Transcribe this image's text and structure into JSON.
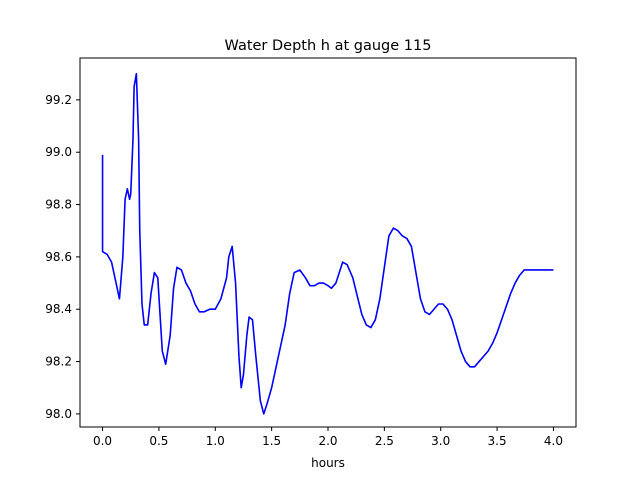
{
  "chart_data": {
    "type": "line",
    "title": "Water Depth h at gauge 115",
    "xlabel": "hours",
    "ylabel": "",
    "xlim": [
      -0.2,
      4.2
    ],
    "ylim": [
      97.95,
      99.36
    ],
    "xticks": [
      0.0,
      0.5,
      1.0,
      1.5,
      2.0,
      2.5,
      3.0,
      3.5,
      4.0
    ],
    "yticks": [
      98.0,
      98.2,
      98.4,
      98.6,
      98.8,
      99.0,
      99.2
    ],
    "xtick_labels": [
      "0.0",
      "0.5",
      "1.0",
      "1.5",
      "2.0",
      "2.5",
      "3.0",
      "3.5",
      "4.0"
    ],
    "ytick_labels": [
      "98.0",
      "98.2",
      "98.4",
      "98.6",
      "98.8",
      "99.0",
      "99.2"
    ],
    "grid": false,
    "series": [
      {
        "color": "#0000ff",
        "x": [
          0.0,
          0.0,
          0.0,
          0.04,
          0.08,
          0.12,
          0.15,
          0.18,
          0.2,
          0.22,
          0.24,
          0.25,
          0.27,
          0.28,
          0.3,
          0.32,
          0.33,
          0.35,
          0.37,
          0.4,
          0.43,
          0.46,
          0.49,
          0.51,
          0.53,
          0.56,
          0.6,
          0.63,
          0.66,
          0.7,
          0.74,
          0.78,
          0.82,
          0.86,
          0.9,
          0.95,
          1.0,
          1.05,
          1.1,
          1.12,
          1.15,
          1.18,
          1.21,
          1.23,
          1.25,
          1.28,
          1.3,
          1.33,
          1.36,
          1.4,
          1.43,
          1.46,
          1.5,
          1.53,
          1.55,
          1.58,
          1.62,
          1.66,
          1.7,
          1.75,
          1.8,
          1.84,
          1.88,
          1.92,
          1.96,
          2.0,
          2.03,
          2.07,
          2.1,
          2.13,
          2.17,
          2.22,
          2.26,
          2.3,
          2.34,
          2.38,
          2.42,
          2.46,
          2.5,
          2.54,
          2.58,
          2.62,
          2.66,
          2.7,
          2.74,
          2.78,
          2.82,
          2.86,
          2.9,
          2.94,
          2.98,
          3.02,
          3.06,
          3.1,
          3.14,
          3.18,
          3.22,
          3.26,
          3.3,
          3.34,
          3.38,
          3.42,
          3.46,
          3.5,
          3.54,
          3.58,
          3.62,
          3.66,
          3.7,
          3.74,
          3.78,
          3.82,
          3.86,
          3.9,
          3.94,
          3.98,
          4.0
        ],
        "values": [
          98.99,
          98.62,
          98.62,
          98.61,
          98.58,
          98.5,
          98.44,
          98.6,
          98.82,
          98.86,
          98.82,
          98.84,
          99.05,
          99.25,
          99.3,
          99.05,
          98.7,
          98.42,
          98.34,
          98.34,
          98.46,
          98.54,
          98.52,
          98.38,
          98.24,
          98.19,
          98.3,
          98.48,
          98.56,
          98.55,
          98.5,
          98.47,
          98.42,
          98.39,
          98.39,
          98.4,
          98.4,
          98.44,
          98.52,
          98.6,
          98.64,
          98.5,
          98.22,
          98.1,
          98.15,
          98.3,
          98.37,
          98.36,
          98.22,
          98.05,
          98.0,
          98.04,
          98.1,
          98.16,
          98.2,
          98.26,
          98.34,
          98.46,
          98.54,
          98.55,
          98.52,
          98.49,
          98.49,
          98.5,
          98.5,
          98.49,
          98.48,
          98.5,
          98.54,
          98.58,
          98.57,
          98.52,
          98.45,
          98.38,
          98.34,
          98.33,
          98.36,
          98.44,
          98.56,
          98.68,
          98.71,
          98.7,
          98.68,
          98.67,
          98.64,
          98.54,
          98.44,
          98.39,
          98.38,
          98.4,
          98.42,
          98.42,
          98.4,
          98.36,
          98.3,
          98.24,
          98.2,
          98.18,
          98.18,
          98.2,
          98.22,
          98.24,
          98.27,
          98.31,
          98.36,
          98.41,
          98.46,
          98.5,
          98.53,
          98.55,
          98.55,
          98.55,
          98.55,
          98.55,
          98.55,
          98.55,
          98.55
        ]
      }
    ]
  }
}
